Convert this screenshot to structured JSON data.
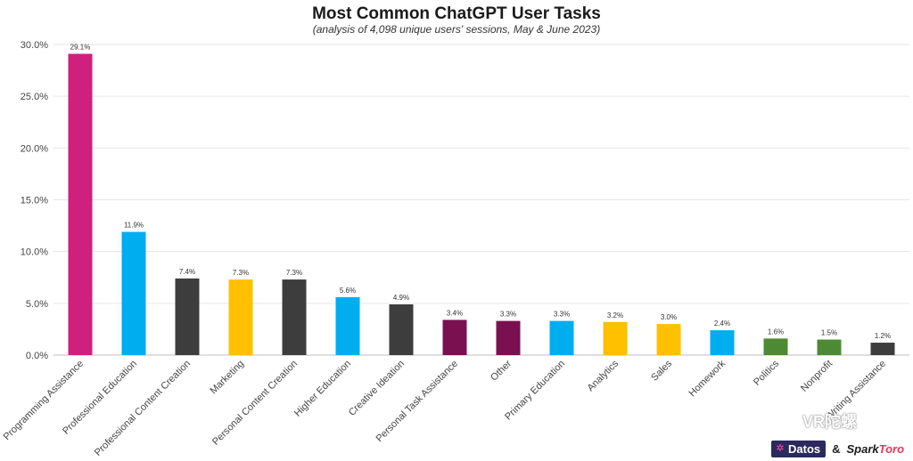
{
  "title": "Most Common ChatGPT User Tasks",
  "subtitle": "(analysis of 4,098 unique users' sessions, May & June 2023)",
  "watermark": "VR陀螺",
  "logos": {
    "datos": "Datos",
    "amp": "&",
    "spark_a": "Spark",
    "spark_b": "Toro"
  },
  "colors": {
    "magenta": "#cf1f7f",
    "blue": "#00adef",
    "dark": "#3d3d3d",
    "yellow": "#ffc000",
    "maroon": "#7b1050",
    "green": "#4e8a33",
    "grid": "#e6e6e6",
    "axis_text": "#444444"
  },
  "chart_data": {
    "type": "bar",
    "title": "Most Common ChatGPT User Tasks",
    "subtitle": "(analysis of 4,098 unique users' sessions, May & June 2023)",
    "xlabel": "",
    "ylabel": "",
    "ylim": [
      0,
      30
    ],
    "yticks": [
      "0.0%",
      "5.0%",
      "10.0%",
      "15.0%",
      "20.0%",
      "25.0%",
      "30.0%"
    ],
    "ytick_values": [
      0,
      5,
      10,
      15,
      20,
      25,
      30
    ],
    "grid": true,
    "categories": [
      "Programming Assistance",
      "Professional Education",
      "Professional Content Creation",
      "Marketing",
      "Personal Content Creation",
      "Higher Education",
      "Creative Ideation",
      "Personal Task Assistance",
      "Other",
      "Primary Education",
      "Analytics",
      "Sales",
      "Homework",
      "Politics",
      "Nonprofit",
      "Writing Assistance"
    ],
    "values": [
      29.1,
      11.9,
      7.4,
      7.3,
      7.3,
      5.6,
      4.9,
      3.4,
      3.3,
      3.3,
      3.2,
      3.0,
      2.4,
      1.6,
      1.5,
      1.2
    ],
    "labels": [
      "29.1%",
      "11.9%",
      "7.4%",
      "7.3%",
      "7.3%",
      "5.6%",
      "4.9%",
      "3.4%",
      "3.3%",
      "3.3%",
      "3.2%",
      "3.0%",
      "2.4%",
      "1.6%",
      "1.5%",
      "1.2%"
    ],
    "bar_colors": [
      "#cf1f7f",
      "#00adef",
      "#3d3d3d",
      "#ffc000",
      "#3d3d3d",
      "#00adef",
      "#3d3d3d",
      "#7b1050",
      "#7b1050",
      "#00adef",
      "#ffc000",
      "#ffc000",
      "#00adef",
      "#4e8a33",
      "#4e8a33",
      "#3d3d3d"
    ]
  }
}
